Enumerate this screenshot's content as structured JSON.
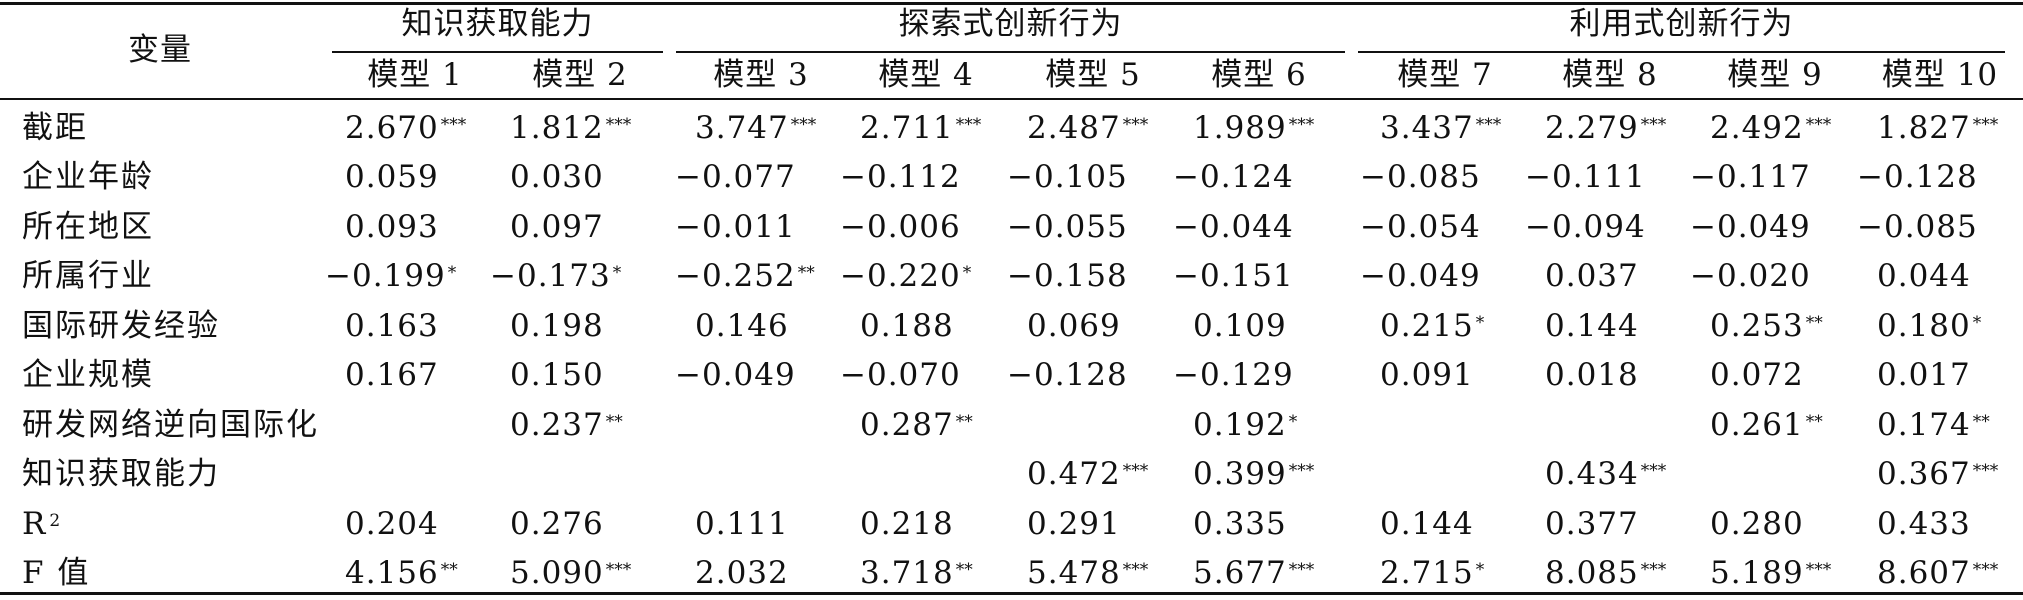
{
  "table": {
    "corner_label": "变量",
    "groups": [
      {
        "label": "知识获取能力",
        "span": 2
      },
      {
        "label": "探索式创新行为",
        "span": 4
      },
      {
        "label": "利用式创新行为",
        "span": 4
      }
    ],
    "models": [
      "模型 1",
      "模型 2",
      "模型 3",
      "模型 4",
      "模型 5",
      "模型 6",
      "模型 7",
      "模型 8",
      "模型 9",
      "模型 10"
    ],
    "rows": [
      {
        "label": "截距",
        "cells": [
          {
            "v": "2.670",
            "sig": "***"
          },
          {
            "v": "1.812",
            "sig": "***"
          },
          {
            "v": "3.747",
            "sig": "***"
          },
          {
            "v": "2.711",
            "sig": "***"
          },
          {
            "v": "2.487",
            "sig": "***"
          },
          {
            "v": "1.989",
            "sig": "***"
          },
          {
            "v": "3.437",
            "sig": "***"
          },
          {
            "v": "2.279",
            "sig": "***"
          },
          {
            "v": "2.492",
            "sig": "***"
          },
          {
            "v": "1.827",
            "sig": "***"
          }
        ]
      },
      {
        "label": "企业年龄",
        "cells": [
          {
            "v": "0.059"
          },
          {
            "v": "0.030"
          },
          {
            "v": "−0.077"
          },
          {
            "v": "−0.112"
          },
          {
            "v": "−0.105"
          },
          {
            "v": "−0.124"
          },
          {
            "v": "−0.085"
          },
          {
            "v": "−0.111"
          },
          {
            "v": "−0.117"
          },
          {
            "v": "−0.128"
          }
        ]
      },
      {
        "label": "所在地区",
        "cells": [
          {
            "v": "0.093"
          },
          {
            "v": "0.097"
          },
          {
            "v": "−0.011"
          },
          {
            "v": "−0.006"
          },
          {
            "v": "−0.055"
          },
          {
            "v": "−0.044"
          },
          {
            "v": "−0.054"
          },
          {
            "v": "−0.094"
          },
          {
            "v": "−0.049"
          },
          {
            "v": "−0.085"
          }
        ]
      },
      {
        "label": "所属行业",
        "cells": [
          {
            "v": "−0.199",
            "sig": "*"
          },
          {
            "v": "−0.173",
            "sig": "*"
          },
          {
            "v": "−0.252",
            "sig": "**"
          },
          {
            "v": "−0.220",
            "sig": "*"
          },
          {
            "v": "−0.158"
          },
          {
            "v": "−0.151"
          },
          {
            "v": "−0.049"
          },
          {
            "v": "0.037"
          },
          {
            "v": "−0.020"
          },
          {
            "v": "0.044"
          }
        ]
      },
      {
        "label": "国际研发经验",
        "cells": [
          {
            "v": "0.163"
          },
          {
            "v": "0.198"
          },
          {
            "v": "0.146"
          },
          {
            "v": "0.188"
          },
          {
            "v": "0.069"
          },
          {
            "v": "0.109"
          },
          {
            "v": "0.215",
            "sig": "*"
          },
          {
            "v": "0.144"
          },
          {
            "v": "0.253",
            "sig": "**"
          },
          {
            "v": "0.180",
            "sig": "*"
          }
        ]
      },
      {
        "label": "企业规模",
        "cells": [
          {
            "v": "0.167"
          },
          {
            "v": "0.150"
          },
          {
            "v": "−0.049"
          },
          {
            "v": "−0.070"
          },
          {
            "v": "−0.128"
          },
          {
            "v": "−0.129"
          },
          {
            "v": "0.091"
          },
          {
            "v": "0.018"
          },
          {
            "v": "0.072"
          },
          {
            "v": "0.017"
          }
        ]
      },
      {
        "label": "研发网络逆向国际化",
        "cells": [
          {
            "v": ""
          },
          {
            "v": "0.237",
            "sig": "**"
          },
          {
            "v": ""
          },
          {
            "v": "0.287",
            "sig": "**"
          },
          {
            "v": ""
          },
          {
            "v": "0.192",
            "sig": "*"
          },
          {
            "v": ""
          },
          {
            "v": ""
          },
          {
            "v": "0.261",
            "sig": "**"
          },
          {
            "v": "0.174",
            "sig": "**"
          }
        ]
      },
      {
        "label": "知识获取能力",
        "cells": [
          {
            "v": ""
          },
          {
            "v": ""
          },
          {
            "v": ""
          },
          {
            "v": ""
          },
          {
            "v": "0.472",
            "sig": "***"
          },
          {
            "v": "0.399",
            "sig": "***"
          },
          {
            "v": ""
          },
          {
            "v": "0.434",
            "sig": "***"
          },
          {
            "v": ""
          },
          {
            "v": "0.367",
            "sig": "***"
          }
        ]
      },
      {
        "label": "R",
        "label_sup": "2",
        "cells": [
          {
            "v": "0.204"
          },
          {
            "v": "0.276"
          },
          {
            "v": "0.111"
          },
          {
            "v": "0.218"
          },
          {
            "v": "0.291"
          },
          {
            "v": "0.335"
          },
          {
            "v": "0.144"
          },
          {
            "v": "0.377"
          },
          {
            "v": "0.280"
          },
          {
            "v": "0.433"
          }
        ]
      },
      {
        "label": "F 值",
        "cells": [
          {
            "v": "4.156",
            "sig": "**"
          },
          {
            "v": "5.090",
            "sig": "***"
          },
          {
            "v": "2.032"
          },
          {
            "v": "3.718",
            "sig": "**"
          },
          {
            "v": "5.478",
            "sig": "***"
          },
          {
            "v": "5.677",
            "sig": "***"
          },
          {
            "v": "2.715",
            "sig": "*"
          },
          {
            "v": "8.085",
            "sig": "***"
          },
          {
            "v": "5.189",
            "sig": "***"
          },
          {
            "v": "8.607",
            "sig": "***"
          }
        ]
      }
    ]
  }
}
